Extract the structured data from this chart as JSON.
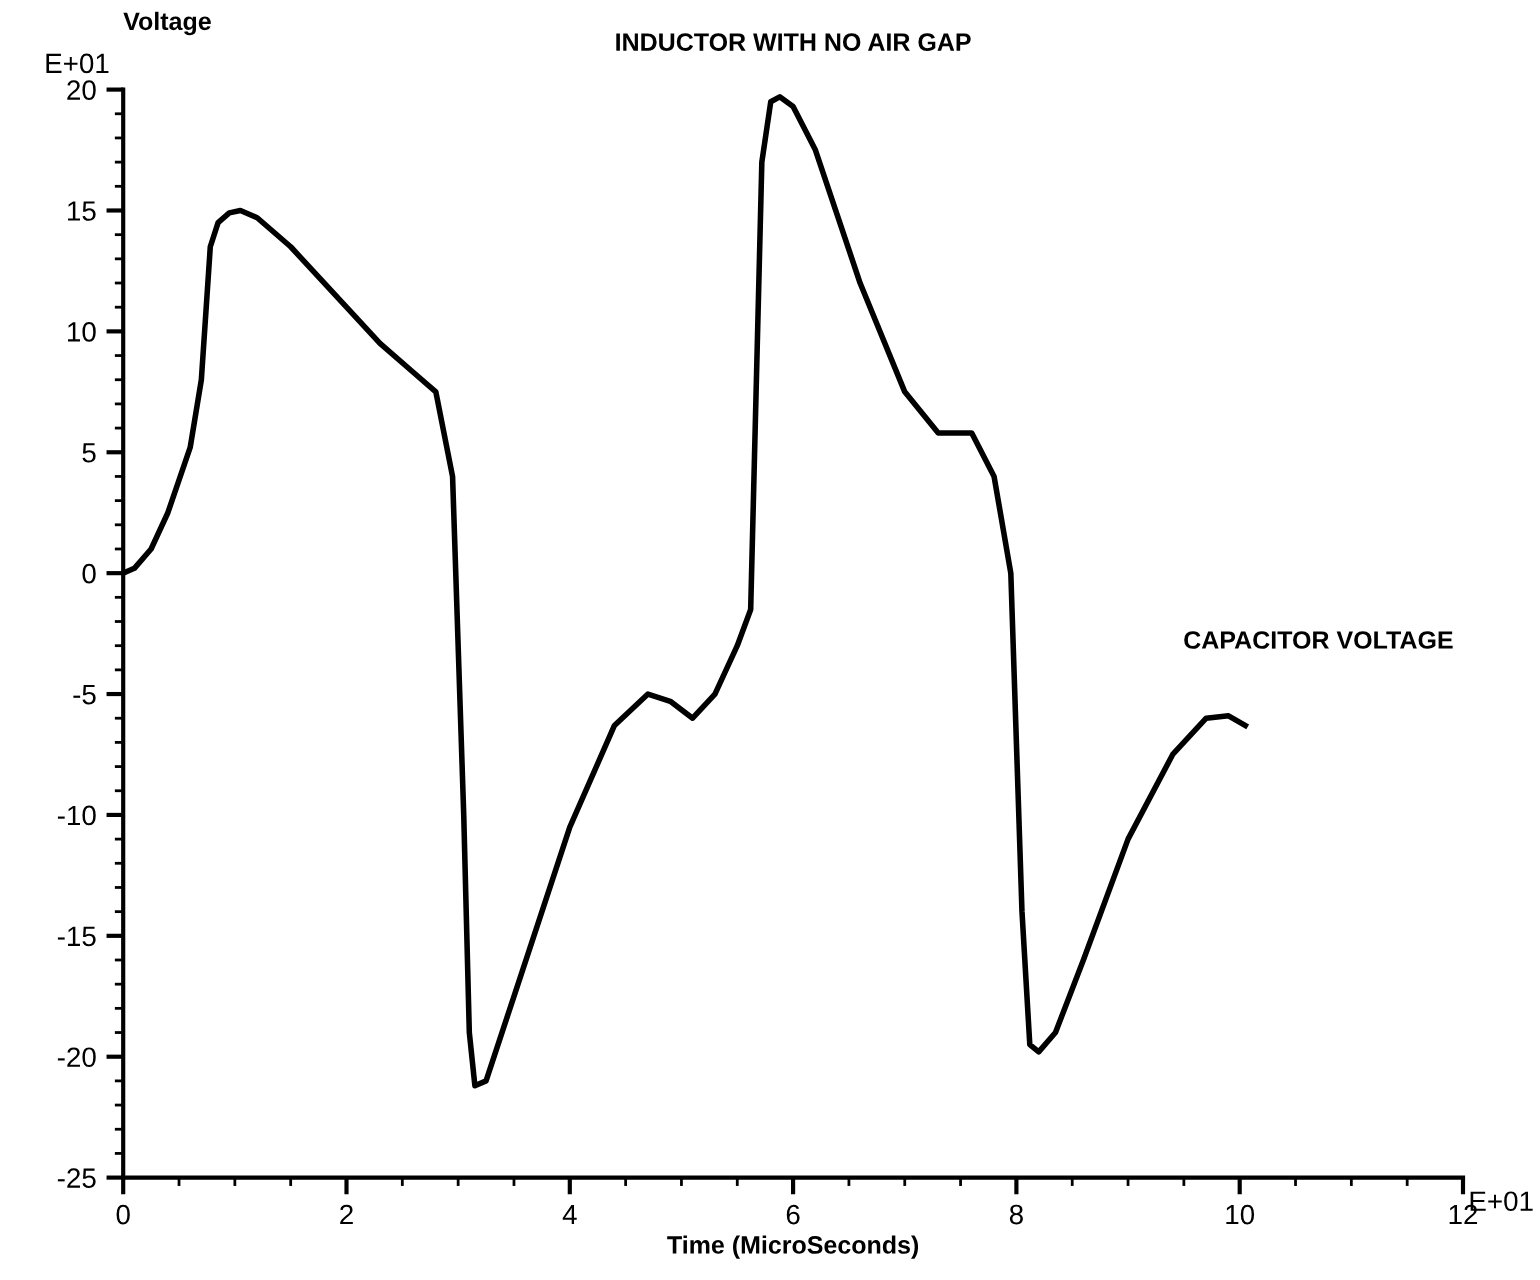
{
  "chart_data": {
    "type": "line",
    "title": "INDUCTOR WITH NO AIR GAP",
    "xlabel": "Time (MicroSeconds)",
    "ylabel": "Voltage",
    "annotations": [
      "E+01",
      "E+01"
    ],
    "xlim": [
      0,
      12
    ],
    "xticks": [
      0,
      2,
      4,
      6,
      8,
      10,
      12
    ],
    "ylim": [
      -25,
      20
    ],
    "yticks": [
      -25,
      -20,
      -15,
      -10,
      -5,
      0,
      5,
      10,
      15,
      20
    ],
    "grid": false,
    "legend": false,
    "marker": "none",
    "line_style": "solid",
    "series": [
      {
        "name": "CAPACITOR VOLTAGE",
        "color": "#000000",
        "x": [
          0,
          0.1,
          0.25,
          0.4,
          0.6,
          0.7,
          0.78,
          0.85,
          0.95,
          1.05,
          1.2,
          1.5,
          2,
          2.3,
          2.6,
          2.8,
          2.95,
          3.05,
          3.1,
          3.15,
          3.25,
          3.5,
          4,
          4.4,
          4.7,
          4.9,
          5.1,
          5.3,
          5.5,
          5.62,
          5.72,
          5.8,
          5.88,
          6.0,
          6.2,
          6.6,
          7,
          7.3,
          7.6,
          7.8,
          7.95,
          8.05,
          8.12,
          8.2,
          8.35,
          8.6,
          9,
          9.4,
          9.7,
          9.9,
          10.05
        ],
        "values": [
          0,
          0.2,
          1,
          2.5,
          5.2,
          8,
          13.5,
          14.5,
          14.9,
          15,
          14.7,
          13.5,
          11,
          9.5,
          8.3,
          7.5,
          4,
          -10,
          -19,
          -21.2,
          -21,
          -17.5,
          -10.5,
          -6.3,
          -5,
          -5.3,
          -6,
          -5,
          -3,
          -1.5,
          17,
          19.5,
          19.7,
          19.3,
          17.5,
          12,
          7.5,
          5.8,
          5.8,
          4,
          0,
          -14,
          -19.5,
          -19.8,
          -19,
          -16,
          -11,
          -7.5,
          -6,
          -5.9,
          -6.3
        ]
      }
    ]
  }
}
